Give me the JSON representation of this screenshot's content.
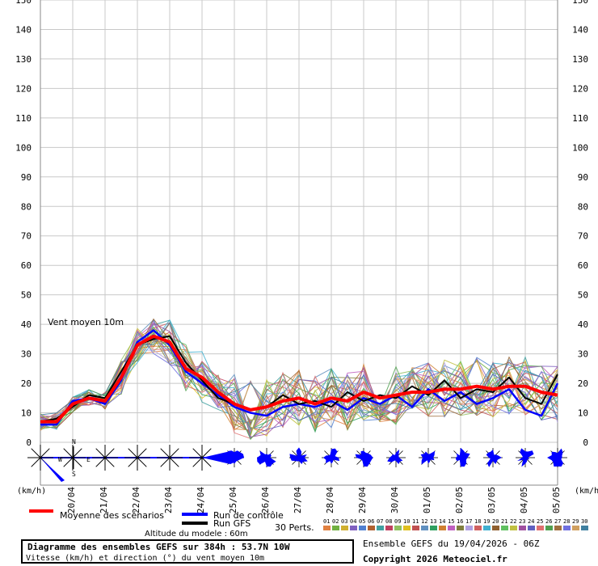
{
  "chart_data": {
    "type": "line",
    "title": "Diagramme des ensembles GEFS sur 384h : 53.7N 10W",
    "subtitle": "Vitesse (km/h) et direction (°) du vent moyen 10m",
    "in_chart_label": "Vent moyen 10m",
    "ylabel": "(km/h)",
    "ylim": [
      0,
      150
    ],
    "yticks": [
      0,
      10,
      20,
      30,
      40,
      50,
      60,
      70,
      80,
      90,
      100,
      110,
      120,
      130,
      140,
      150
    ],
    "xlabels": [
      "20/04",
      "21/04",
      "22/04",
      "23/04",
      "24/04",
      "25/04",
      "26/04",
      "27/04",
      "28/04",
      "29/04",
      "30/04",
      "01/05",
      "02/05",
      "03/05",
      "04/05",
      "05/05"
    ],
    "x_range_days": [
      0,
      16
    ],
    "grid": true,
    "series": [
      {
        "name": "Moyenne des scénarios",
        "color": "#ff0000",
        "values": [
          7,
          7,
          13,
          15,
          14,
          22,
          33,
          36,
          34,
          25,
          22,
          17,
          13,
          11,
          12,
          14,
          15,
          13,
          15,
          14,
          17,
          15,
          16,
          17,
          17,
          18,
          18,
          19,
          18,
          19,
          19,
          17,
          16
        ]
      },
      {
        "name": "Run de contrôle",
        "color": "#0000ff",
        "values": [
          6,
          6,
          14,
          15,
          13,
          21,
          34,
          38,
          33,
          24,
          20,
          16,
          12,
          10,
          9,
          12,
          13,
          12,
          14,
          11,
          15,
          13,
          16,
          12,
          18,
          14,
          17,
          13,
          15,
          18,
          11,
          9,
          20
        ]
      },
      {
        "name": "Run GFS",
        "color": "#000000",
        "values": [
          7,
          8,
          12,
          16,
          15,
          24,
          33,
          35,
          36,
          27,
          21,
          15,
          13,
          11,
          12,
          16,
          13,
          14,
          12,
          17,
          14,
          16,
          15,
          19,
          16,
          21,
          15,
          18,
          17,
          22,
          15,
          13,
          23
        ]
      }
    ],
    "perturbations": {
      "label": "30 Perts.",
      "count": 30,
      "codes": [
        "01",
        "02",
        "03",
        "04",
        "05",
        "06",
        "07",
        "08",
        "09",
        "10",
        "11",
        "12",
        "13",
        "14",
        "15",
        "16",
        "17",
        "18",
        "19",
        "20",
        "21",
        "22",
        "23",
        "24",
        "25",
        "26",
        "27",
        "28",
        "29",
        "30"
      ],
      "colors": [
        "#e08040",
        "#70b040",
        "#d0b030",
        "#8060c0",
        "#5080d0",
        "#b06030",
        "#40a0a0",
        "#c04060",
        "#90c060",
        "#e0c020",
        "#c05050",
        "#6090c0",
        "#30a060",
        "#d08030",
        "#c060c0",
        "#808040",
        "#b0a0e0",
        "#d06060",
        "#40b0d0",
        "#906030",
        "#60c060",
        "#c0c040",
        "#a050a0",
        "#6060c0",
        "#e07070",
        "#50a050",
        "#a07040",
        "#7070e0",
        "#d0a060",
        "#4080a0"
      ]
    },
    "wind_direction_row": {
      "compass": [
        "N",
        "W",
        "E",
        "S"
      ]
    }
  },
  "legend": {
    "mean": "Moyenne des scénarios",
    "control": "Run de contrôle",
    "gfs": "Run GFS",
    "perts": "30 Perts."
  },
  "footer": {
    "altitude": "Altitude du modele : 60m",
    "title": "Diagramme des ensembles GEFS sur 384h : 53.7N 10W",
    "subtitle": "Vitesse (km/h) et direction (°) du vent moyen 10m",
    "ensemble": "Ensemble GEFS du 19/04/2026 - 06Z",
    "copyright": "Copyright 2026 Meteociel.fr"
  },
  "colors": {
    "grid": "#c8c8c8",
    "mean": "#ff0000",
    "control": "#0000ff",
    "gfs": "#000000",
    "rose": "#0000ff"
  }
}
